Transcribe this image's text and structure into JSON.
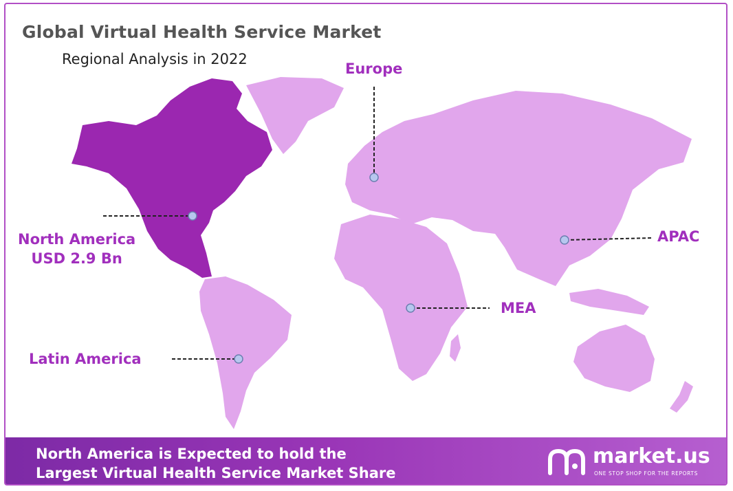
{
  "header": {
    "title": "Global Virtual Health Service Market",
    "subtitle": "Regional Analysis in 2022"
  },
  "regions": {
    "north_america": {
      "name": "North America",
      "value": "USD 2.9 Bn"
    },
    "europe": {
      "name": "Europe"
    },
    "apac": {
      "name": "APAC"
    },
    "mea": {
      "name": "MEA"
    },
    "latin_america": {
      "name": "Latin America"
    }
  },
  "colors": {
    "highlight_region": "#9b27b0",
    "other_regions": "#e1a6ec",
    "label": "#a12fbd",
    "footer_start": "#7d2aa6",
    "footer_end": "#b65fd0"
  },
  "footer": {
    "line1": "North America is Expected to hold the",
    "line2": "Largest Virtual Health Service Market Share"
  },
  "brand": {
    "name": "market.us",
    "tagline": "ONE STOP SHOP FOR THE REPORTS",
    "logo_icon": "market-us-logo-icon"
  }
}
